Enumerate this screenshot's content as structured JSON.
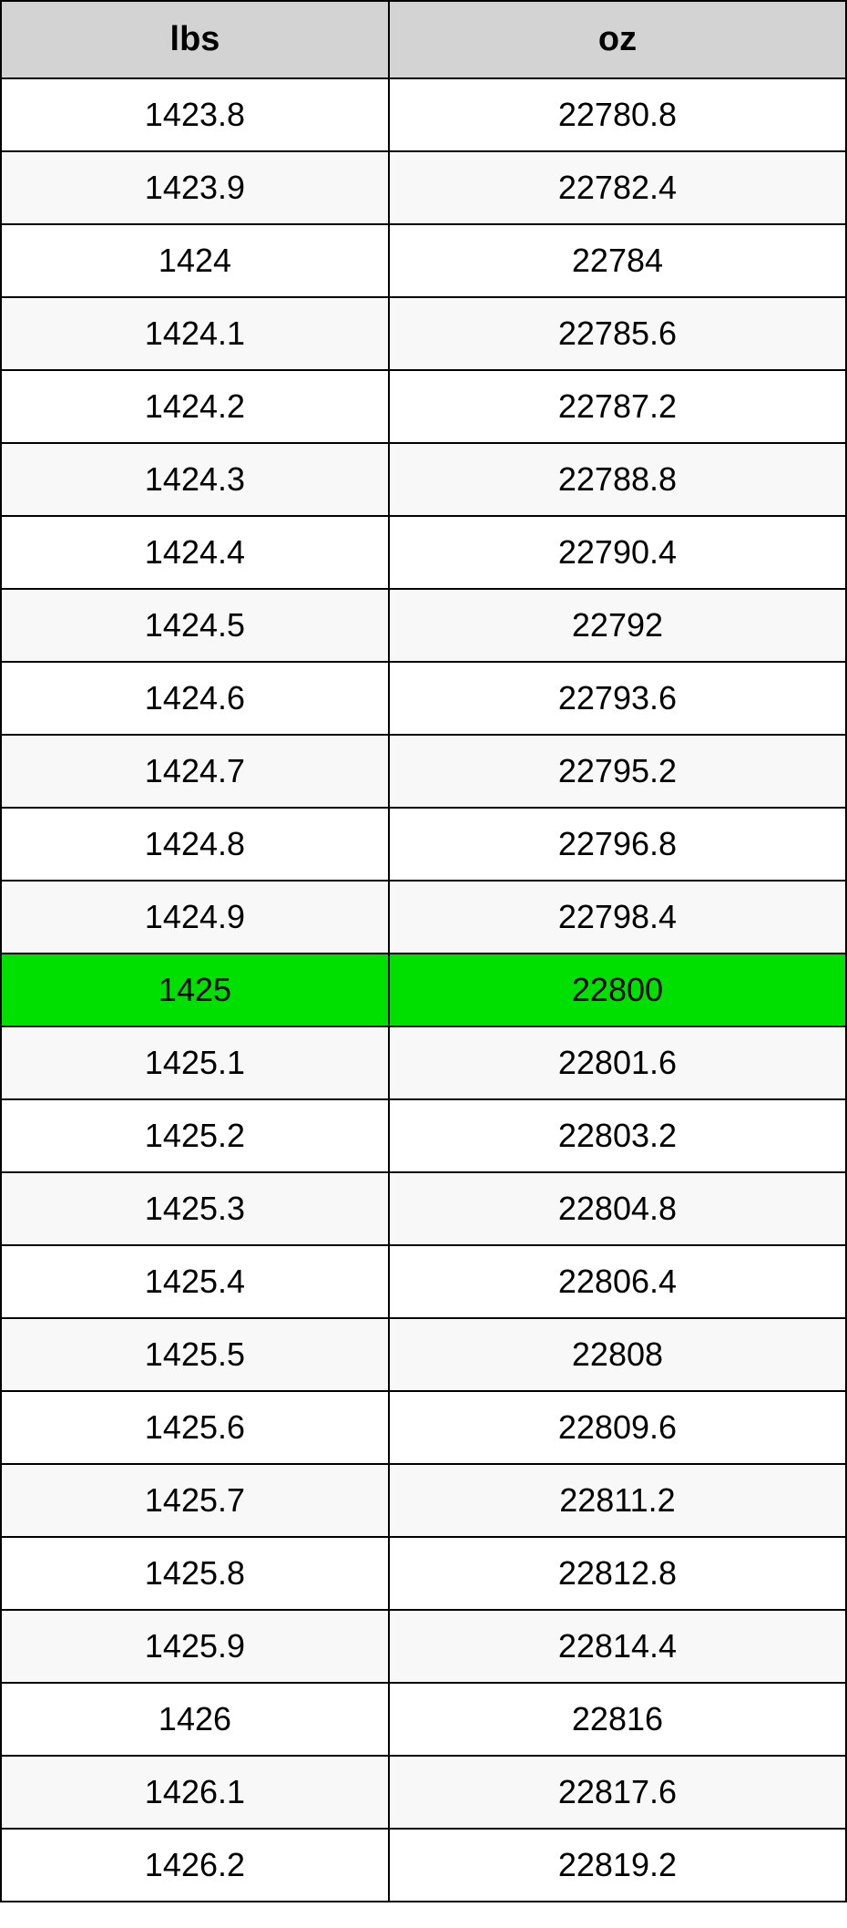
{
  "table": {
    "headers": {
      "col1": "lbs",
      "col2": "oz"
    },
    "header_bg": "#d3d3d3",
    "row_white_bg": "#ffffff",
    "row_alt_bg": "#f8f8f8",
    "highlight_bg": "#00e000",
    "border_color": "#000000",
    "text_color": "#000000",
    "header_fontsize": 38,
    "cell_fontsize": 36,
    "rows": [
      {
        "lbs": "1423.8",
        "oz": "22780.8",
        "style": "white"
      },
      {
        "lbs": "1423.9",
        "oz": "22782.4",
        "style": "alt"
      },
      {
        "lbs": "1424",
        "oz": "22784",
        "style": "white"
      },
      {
        "lbs": "1424.1",
        "oz": "22785.6",
        "style": "alt"
      },
      {
        "lbs": "1424.2",
        "oz": "22787.2",
        "style": "white"
      },
      {
        "lbs": "1424.3",
        "oz": "22788.8",
        "style": "alt"
      },
      {
        "lbs": "1424.4",
        "oz": "22790.4",
        "style": "white"
      },
      {
        "lbs": "1424.5",
        "oz": "22792",
        "style": "alt"
      },
      {
        "lbs": "1424.6",
        "oz": "22793.6",
        "style": "white"
      },
      {
        "lbs": "1424.7",
        "oz": "22795.2",
        "style": "alt"
      },
      {
        "lbs": "1424.8",
        "oz": "22796.8",
        "style": "white"
      },
      {
        "lbs": "1424.9",
        "oz": "22798.4",
        "style": "alt"
      },
      {
        "lbs": "1425",
        "oz": "22800",
        "style": "highlight"
      },
      {
        "lbs": "1425.1",
        "oz": "22801.6",
        "style": "alt"
      },
      {
        "lbs": "1425.2",
        "oz": "22803.2",
        "style": "white"
      },
      {
        "lbs": "1425.3",
        "oz": "22804.8",
        "style": "alt"
      },
      {
        "lbs": "1425.4",
        "oz": "22806.4",
        "style": "white"
      },
      {
        "lbs": "1425.5",
        "oz": "22808",
        "style": "alt"
      },
      {
        "lbs": "1425.6",
        "oz": "22809.6",
        "style": "white"
      },
      {
        "lbs": "1425.7",
        "oz": "22811.2",
        "style": "alt"
      },
      {
        "lbs": "1425.8",
        "oz": "22812.8",
        "style": "white"
      },
      {
        "lbs": "1425.9",
        "oz": "22814.4",
        "style": "alt"
      },
      {
        "lbs": "1426",
        "oz": "22816",
        "style": "white"
      },
      {
        "lbs": "1426.1",
        "oz": "22817.6",
        "style": "alt"
      },
      {
        "lbs": "1426.2",
        "oz": "22819.2",
        "style": "white"
      }
    ]
  }
}
